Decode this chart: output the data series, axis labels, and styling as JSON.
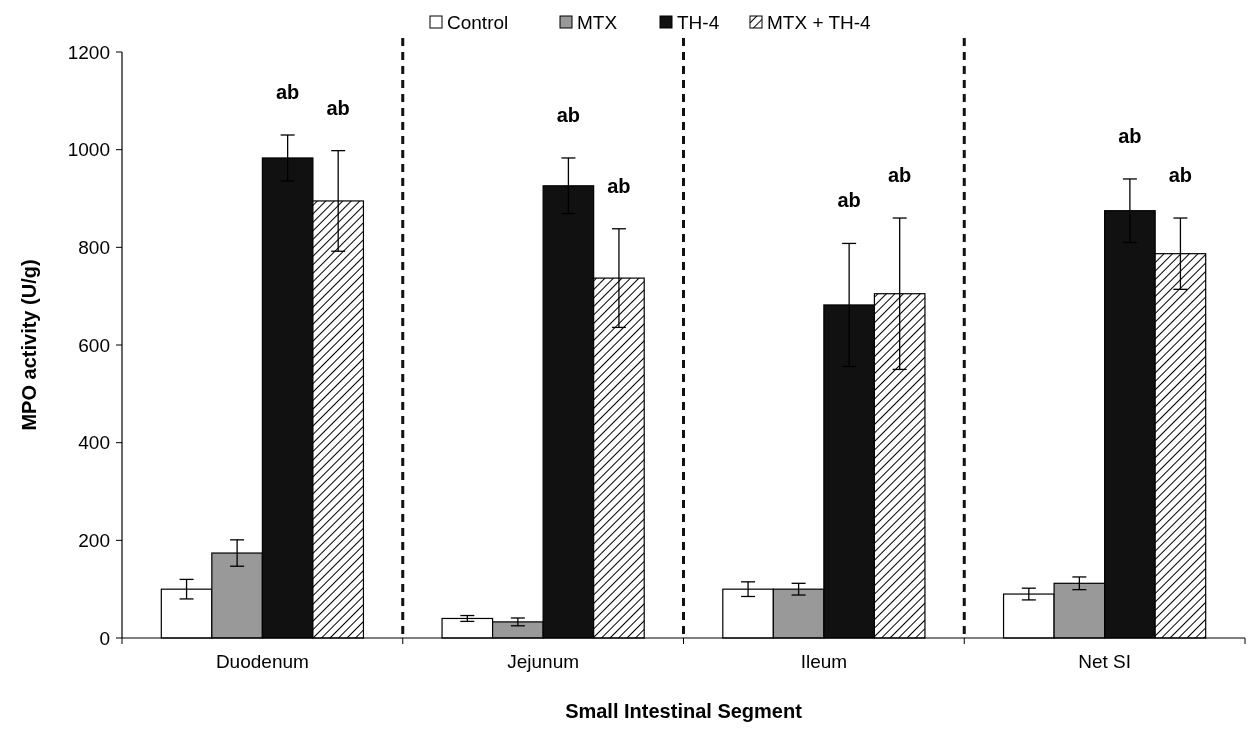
{
  "chart_data": {
    "type": "bar",
    "xlabel": "Small Intestinal Segment",
    "ylabel": "MPO activity (U/g)",
    "categories": [
      "Duodenum",
      "Jejunum",
      "Ileum",
      "Net SI"
    ],
    "series": [
      {
        "name": "Control",
        "color": "#ffffff",
        "values": [
          100,
          40,
          100,
          90
        ],
        "errors": [
          20,
          6,
          15,
          12
        ]
      },
      {
        "name": "MTX",
        "color": "#999999",
        "values": [
          174,
          33,
          100,
          112
        ],
        "errors": [
          27,
          8,
          12,
          13
        ]
      },
      {
        "name": "TH-4",
        "color": "#111111",
        "values": [
          983,
          926,
          682,
          875
        ],
        "errors": [
          47,
          57,
          126,
          65
        ]
      },
      {
        "name": "MTX + TH-4",
        "color": "#000000",
        "values": [
          895,
          737,
          705,
          787
        ],
        "errors": [
          103,
          101,
          155,
          73
        ]
      }
    ],
    "ylim": [
      0,
      1200
    ],
    "yticks": [
      0,
      200,
      400,
      600,
      800,
      1000,
      1200
    ],
    "grid": false,
    "legend": "top",
    "annotations": [
      "ab",
      "ab",
      "ab",
      "ab",
      "ab",
      "ab",
      "ab",
      "ab"
    ]
  }
}
